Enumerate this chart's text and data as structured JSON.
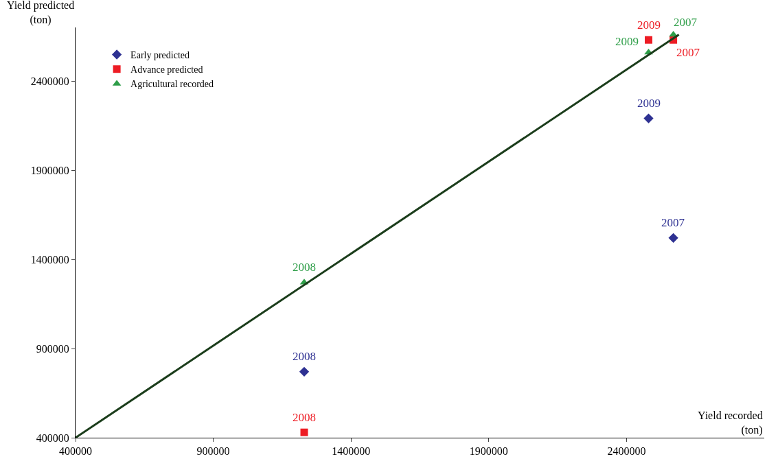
{
  "chart_data": {
    "type": "scatter",
    "xlabel": "Yield recorded\n(ton)",
    "ylabel": "Yield predicted\n(ton)",
    "xlim": [
      400000,
      2900000
    ],
    "xticks": [
      400000,
      900000,
      1400000,
      1900000,
      2400000
    ],
    "ylim": [
      400000,
      2700000
    ],
    "yticks": [
      400000,
      900000,
      1400000,
      1900000,
      2400000
    ],
    "legend": "top left",
    "series": [
      {
        "name": "Early predicted",
        "color": "#2e3192",
        "marker": "diamond",
        "x": [
          1230000,
          2480000,
          2570000
        ],
        "values": [
          770000,
          2190000,
          1520000
        ]
      },
      {
        "name": "Advance predicted",
        "color": "#ed1c24",
        "marker": "square",
        "x": [
          1230000,
          2480000,
          2570000
        ],
        "values": [
          430000,
          2630000,
          2630000
        ]
      },
      {
        "name": "Agricultural recorded",
        "color": "#2e9e48",
        "marker": "triangle",
        "x": [
          1230000,
          2480000,
          2570000
        ],
        "values": [
          1270000,
          2560000,
          2660000
        ]
      },
      {
        "type": "line",
        "color": "#1b3d1b",
        "marker": "none",
        "line_style": "solid",
        "x": [
          400000,
          2590000
        ],
        "values": [
          400000,
          2660000
        ]
      }
    ],
    "annotations": [
      {
        "text": "2008",
        "x": 1230000,
        "y": 770000
      },
      {
        "text": "2009",
        "x": 2480000,
        "y": 2190000
      },
      {
        "text": "2007",
        "x": 2570000,
        "y": 1520000
      },
      {
        "text": "2008",
        "x": 1230000,
        "y": 430000
      },
      {
        "text": "2009",
        "x": 2480000,
        "y": 2630000
      },
      {
        "text": "2007",
        "x": 2570000,
        "y": 2630000
      },
      {
        "text": "2008",
        "x": 1230000,
        "y": 1270000
      },
      {
        "text": "2009",
        "x": 2480000,
        "y": 2560000
      },
      {
        "text": "2007",
        "x": 2570000,
        "y": 2660000
      }
    ]
  }
}
